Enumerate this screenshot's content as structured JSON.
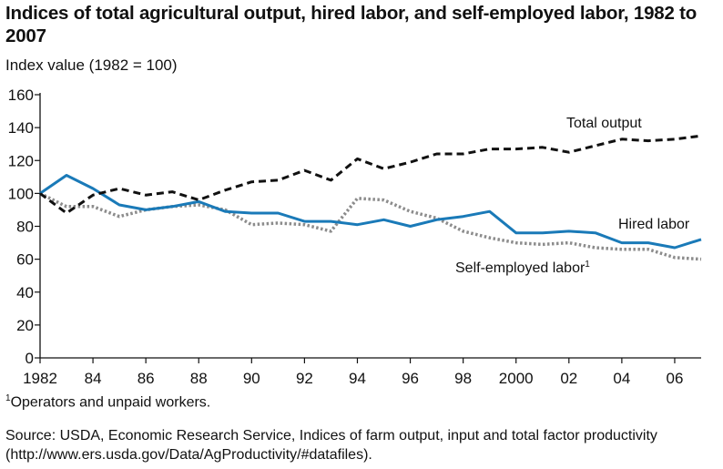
{
  "title": "Indices of total agricultural output, hired labor, and self-employed labor, 1982 to 2007",
  "subtitle": "Index value (1982 = 100)",
  "footnote": {
    "marker": "1",
    "text": "Operators and unpaid workers."
  },
  "source": "Source: USDA, Economic Research Service, Indices of farm output, input and total factor productivity (http://www.ers.usda.gov/Data/AgProductivity/#datafiles).",
  "colors": {
    "total_output": "#111111",
    "hired_labor": "#1a7ab8",
    "self_employed": "#8c8c8c",
    "axis": "#111111"
  },
  "chart_data": {
    "type": "line",
    "title": "Indices of total agricultural output, hired labor, and self-employed labor, 1982 to 2007",
    "ylabel": "Index value (1982 = 100)",
    "xlabel": "",
    "xlim": [
      1982,
      2007
    ],
    "ylim": [
      0,
      160
    ],
    "grid": false,
    "x_ticks": [
      1982,
      1984,
      1986,
      1988,
      1990,
      1992,
      1994,
      1996,
      1998,
      2000,
      2002,
      2004,
      2006
    ],
    "x_tick_labels": [
      "1982",
      "84",
      "86",
      "88",
      "90",
      "92",
      "94",
      "96",
      "98",
      "2000",
      "02",
      "04",
      "06"
    ],
    "y_ticks": [
      0,
      20,
      40,
      60,
      80,
      100,
      120,
      140,
      160
    ],
    "y_tick_labels": [
      "0",
      "20",
      "40",
      "60",
      "80",
      "100",
      "120",
      "140",
      "160"
    ],
    "x": [
      1982,
      1983,
      1984,
      1985,
      1986,
      1987,
      1988,
      1989,
      1990,
      1991,
      1992,
      1993,
      1994,
      1995,
      1996,
      1997,
      1998,
      1999,
      2000,
      2001,
      2002,
      2003,
      2004,
      2005,
      2006,
      2007
    ],
    "series": [
      {
        "name": "Total output",
        "style": "dashed",
        "values": [
          100,
          88,
          99,
          103,
          99,
          101,
          96,
          102,
          107,
          108,
          114,
          108,
          121,
          115,
          119,
          124,
          124,
          127,
          127,
          128,
          125,
          129,
          133,
          132,
          133,
          135
        ]
      },
      {
        "name": "Hired labor",
        "style": "solid",
        "values": [
          100,
          111,
          103,
          93,
          90,
          92,
          95,
          89,
          88,
          88,
          83,
          83,
          81,
          84,
          80,
          84,
          86,
          89,
          76,
          76,
          77,
          76,
          70,
          70,
          67,
          72
        ]
      },
      {
        "name": "Self-employed labor",
        "footnote_marker": "1",
        "style": "dotted",
        "values": [
          100,
          92,
          92,
          86,
          90,
          92,
          93,
          90,
          81,
          82,
          81,
          77,
          97,
          96,
          89,
          85,
          77,
          73,
          70,
          69,
          70,
          67,
          66,
          66,
          61,
          60
        ]
      }
    ]
  }
}
